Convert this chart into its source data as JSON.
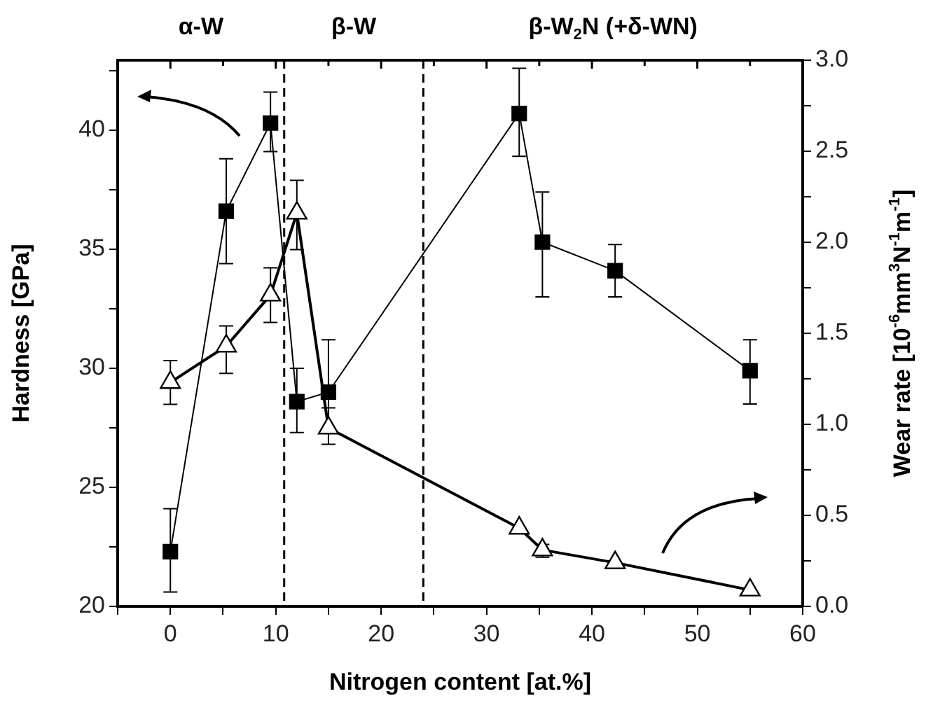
{
  "chart_data": {
    "type": "line",
    "xlabel": "Nitrogen content [at.%]",
    "ylabel": "Hardness [GPa]",
    "y2label": "Wear rate [10$^{-6}$mm$^{3}$N$^{-1}$m$^{-1}$]",
    "xlim": [
      -5,
      60
    ],
    "xticks": [
      {
        "value": -5,
        "label": null
      },
      0,
      {
        "value": 5,
        "label": null
      },
      10,
      {
        "value": 15,
        "label": null
      },
      20,
      {
        "value": 25,
        "label": null
      },
      30,
      {
        "value": 35,
        "label": null
      },
      40,
      {
        "value": 45,
        "label": null
      },
      50,
      {
        "value": 55,
        "label": null
      },
      60
    ],
    "ylim": [
      20,
      42.94
    ],
    "yticks": [
      20,
      {
        "value": 22.5,
        "label": null
      },
      25,
      {
        "value": 27.5,
        "label": null
      },
      30,
      {
        "value": 32.5,
        "label": null
      },
      35,
      {
        "value": 37.5,
        "label": null
      },
      40,
      {
        "value": 42.5,
        "label": null
      }
    ],
    "y2lim": [
      0,
      3.0
    ],
    "y2ticks": [
      {
        "value": 0,
        "label": "0.0"
      },
      {
        "value": 0.25,
        "label": null
      },
      0.5,
      {
        "value": 0.75,
        "label": null
      },
      {
        "value": 1,
        "label": "1.0"
      },
      {
        "value": 1.25,
        "label": null
      },
      1.5,
      {
        "value": 1.75,
        "label": null
      },
      {
        "value": 2,
        "label": "2.0"
      },
      {
        "value": 2.25,
        "label": null
      },
      2.5,
      {
        "value": 2.75,
        "label": null
      },
      {
        "value": 3,
        "label": "3.0"
      }
    ],
    "series": [
      {
        "color": "#000000",
        "marker": "square",
        "x": [
          0,
          5.3,
          9.5,
          12,
          15,
          33.1,
          35.3,
          42.2,
          55
        ],
        "values": [
          22.3,
          36.6,
          40.3,
          28.6,
          29.0,
          40.7,
          35.3,
          34.1,
          29.9
        ],
        "errors": [
          [
            20.6,
            24.1
          ],
          [
            34.4,
            38.8
          ],
          [
            39.1,
            41.6
          ],
          [
            27.3,
            30.0
          ],
          [
            27.3,
            31.2
          ],
          [
            38.9,
            42.6
          ],
          [
            33.0,
            37.4
          ],
          [
            33.0,
            35.2
          ],
          [
            28.5,
            31.2
          ]
        ]
      },
      {
        "color": "#000000",
        "marker": "triangle",
        "axis": "y2",
        "x": [
          0,
          5.3,
          9.5,
          12,
          15,
          33.1,
          35.3,
          42.2,
          55
        ],
        "values": [
          1.23,
          1.43,
          1.71,
          2.16,
          0.98,
          0.43,
          0.31,
          0.24,
          0.09
        ],
        "errors": [
          [
            1.11,
            1.35
          ],
          [
            1.28,
            1.54
          ],
          [
            1.56,
            1.86
          ],
          [
            1.96,
            2.34
          ],
          [
            0.89,
            1.09
          ],
          null,
          [
            0.27,
            0.34
          ],
          null,
          null
        ]
      }
    ],
    "ref_lines": [
      {
        "axis": "x",
        "value": 10.8,
        "color": "#000000",
        "line_style": "dashed"
      },
      {
        "axis": "x",
        "value": 24,
        "color": "#000000",
        "line_style": "dashed"
      }
    ],
    "annotations": [
      "α-W",
      "β-W",
      "β-W$_{2}$N (+δ-WN)"
    ],
    "grid": false,
    "legend": false
  }
}
